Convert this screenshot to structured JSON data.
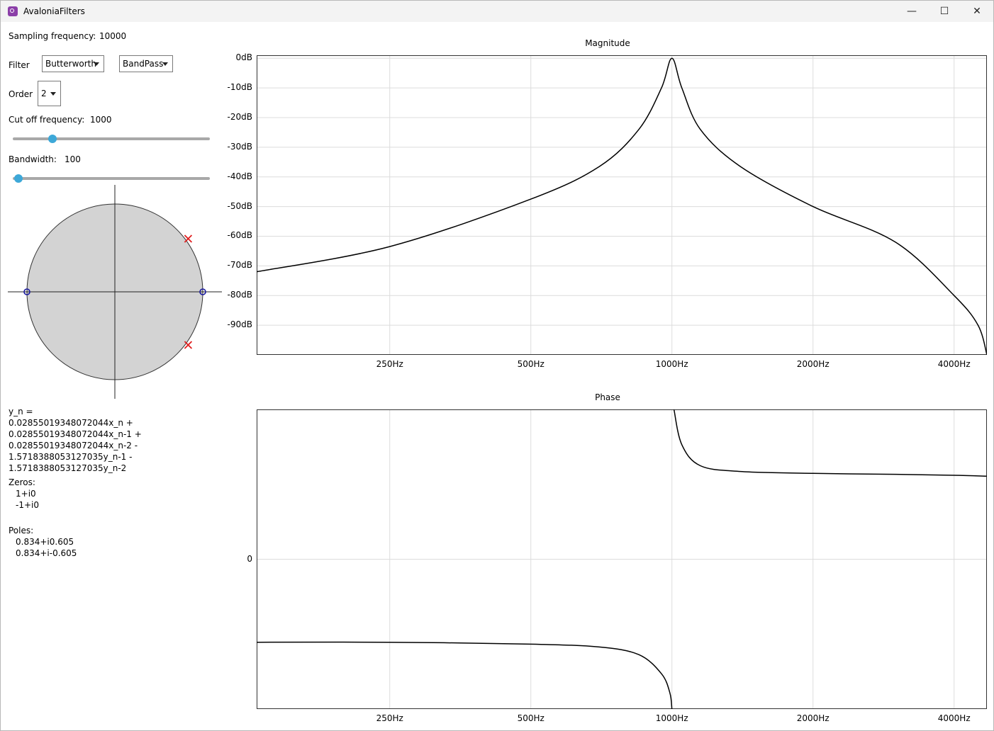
{
  "window": {
    "title": "AvaloniaFilters",
    "minimize": "—",
    "maximize": "☐",
    "close": "✕"
  },
  "controls": {
    "sampling_label": "Sampling frequency:",
    "sampling_value": "10000",
    "filter_label": "Filter",
    "filter_type": "Butterworth",
    "filter_band": "BandPass",
    "order_label": "Order",
    "order_value": "2",
    "cutoff_label": "Cut off frequency:",
    "cutoff_value": "1000",
    "cutoff_slider_fraction": 0.2,
    "bandwidth_label": "Bandwidth:",
    "bandwidth_value": "100",
    "bandwidth_slider_fraction": 0.03
  },
  "pole_zero": {
    "zeros": [
      [
        1,
        0
      ],
      [
        -1,
        0
      ]
    ],
    "poles": [
      [
        0.834,
        0.605
      ],
      [
        0.834,
        -0.605
      ]
    ],
    "zero_color": "#1a1aa0",
    "pole_color": "#e02020",
    "disk_color": "#d3d3d3"
  },
  "equation": "y_n = 0.02855019348072044x_n +\n0.02855019348072044x_n-1 +\n0.02855019348072044x_n-2 -\n1.5718388053127035y_n-1 -\n1.5718388053127035y_n-2",
  "zeros_title": "Zeros:",
  "zeros_list": [
    "1+i0",
    "-1+i0"
  ],
  "poles_title": "Poles:",
  "poles_list": [
    "0.834+i0.605",
    "0.834+i-0.605"
  ],
  "magnitude": {
    "title": "Magnitude",
    "y_ticks": [
      "0dB",
      "-10dB",
      "-20dB",
      "-30dB",
      "-40dB",
      "-50dB",
      "-60dB",
      "-70dB",
      "-80dB",
      "-90dB"
    ],
    "x_ticks": [
      "250Hz",
      "500Hz",
      "1000Hz",
      "2000Hz",
      "4000Hz"
    ]
  },
  "phase": {
    "title": "Phase",
    "y_ticks": [
      "0"
    ],
    "x_ticks": [
      "250Hz",
      "500Hz",
      "1000Hz",
      "2000Hz",
      "4000Hz"
    ]
  },
  "chart_data": [
    {
      "type": "line",
      "title": "Magnitude",
      "xscale": "log",
      "xlim": [
        130,
        4700
      ],
      "ylim": [
        -100,
        1
      ],
      "x": [
        130,
        250,
        500,
        700,
        850,
        950,
        1000,
        1050,
        1150,
        1400,
        2000,
        3000,
        4000,
        4500,
        4700
      ],
      "series": [
        {
          "values": [
            -72,
            -63.5,
            -47.5,
            -36.5,
            -24,
            -10,
            0,
            -10,
            -24,
            -36.5,
            -50,
            -62,
            -80,
            -90,
            -100
          ]
        }
      ],
      "grid": true
    },
    {
      "type": "line",
      "title": "Phase",
      "xscale": "log",
      "xlim": [
        130,
        4700
      ],
      "ylim": [
        -1.57,
        1.57
      ],
      "y_tick_values": [
        0
      ],
      "x": [
        130,
        250,
        500,
        700,
        850,
        950,
        990,
        1000,
        1010,
        1050,
        1150,
        1400,
        2000,
        3000,
        4000,
        4700
      ],
      "series": [
        {
          "values": [
            -0.87,
            -0.87,
            -0.89,
            -0.92,
            -1.0,
            -1.2,
            -1.4,
            -1.57,
            1.57,
            1.2,
            0.98,
            0.92,
            0.9,
            0.89,
            0.88,
            0.87
          ]
        }
      ],
      "grid": true
    }
  ]
}
